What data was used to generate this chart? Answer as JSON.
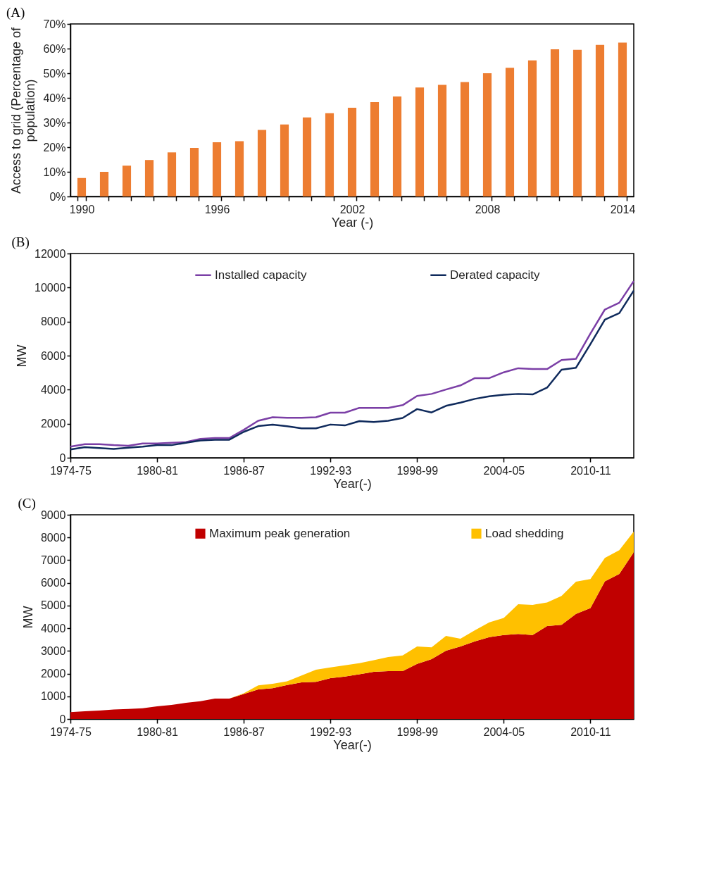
{
  "chart_data": [
    {
      "type": "bar",
      "title": "(A)",
      "xlabel": "Year (-)",
      "ylabel": "Access to grid (Percentage of population)",
      "categories": [
        "1990",
        null,
        null,
        null,
        null,
        null,
        "1996",
        null,
        null,
        null,
        null,
        null,
        "2002",
        null,
        null,
        null,
        null,
        null,
        "2008",
        null,
        null,
        null,
        null,
        null,
        "2014"
      ],
      "values": [
        7.5,
        10,
        12.5,
        14.8,
        17.9,
        19.7,
        22,
        22.4,
        27,
        29.2,
        32.1,
        33.8,
        36,
        38.3,
        40.6,
        44.2,
        45.3,
        46.4,
        50,
        52.2,
        55.2,
        59.7,
        59.5,
        61.5,
        62.4
      ],
      "color": "#ed7d31",
      "ylim": [
        0,
        70
      ],
      "yticks": [
        {
          "value": 0,
          "label": "0%"
        },
        {
          "value": 10,
          "label": "10%"
        },
        {
          "value": 20,
          "label": "20%"
        },
        {
          "value": 30,
          "label": "30%"
        },
        {
          "value": 40,
          "label": "40%"
        },
        {
          "value": 50,
          "label": "50%"
        },
        {
          "value": 60,
          "label": "60%"
        },
        {
          "value": 70,
          "label": "70%"
        }
      ],
      "grid": false
    },
    {
      "type": "line",
      "title": "(B)",
      "xlabel": "Year(-)",
      "ylabel": "MW",
      "categories": [
        "1974-75",
        null,
        null,
        null,
        null,
        null,
        "1980-81",
        null,
        null,
        null,
        null,
        null,
        "1986-87",
        null,
        null,
        null,
        null,
        null,
        "1992-93",
        null,
        null,
        null,
        null,
        null,
        "1998-99",
        null,
        null,
        null,
        null,
        null,
        "2004-05",
        null,
        null,
        null,
        null,
        null,
        "2010-11",
        null,
        null,
        null
      ],
      "series": [
        {
          "name": "Installed capacity",
          "color": "#7b3fa6",
          "values": [
            650,
            800,
            800,
            740,
            700,
            840,
            840,
            880,
            920,
            1110,
            1160,
            1160,
            1640,
            2170,
            2380,
            2350,
            2350,
            2380,
            2650,
            2650,
            2930,
            2930,
            2930,
            3090,
            3630,
            3750,
            4010,
            4250,
            4680,
            4680,
            5020,
            5260,
            5210,
            5210,
            5740,
            5810,
            7300,
            8710,
            9110,
            10380
          ]
        },
        {
          "name": "Derated capacity",
          "color": "#0f2a5c",
          "values": [
            490,
            620,
            570,
            520,
            590,
            650,
            740,
            740,
            880,
            1010,
            1060,
            1060,
            1520,
            1860,
            1940,
            1850,
            1730,
            1730,
            1950,
            1900,
            2150,
            2100,
            2170,
            2340,
            2860,
            2660,
            3050,
            3240,
            3460,
            3610,
            3700,
            3750,
            3720,
            4120,
            5170,
            5290,
            6680,
            8120,
            8500,
            9820
          ]
        }
      ],
      "ylim": [
        0,
        12000
      ],
      "yticks": [
        0,
        2000,
        4000,
        6000,
        8000,
        10000,
        12000
      ],
      "grid": false,
      "legend": "top"
    },
    {
      "type": "area",
      "title": "(C)",
      "xlabel": "Year(-)",
      "ylabel": "MW",
      "stacked": true,
      "categories": [
        "1974-75",
        null,
        null,
        null,
        null,
        null,
        "1980-81",
        null,
        null,
        null,
        null,
        null,
        "1986-87",
        null,
        null,
        null,
        null,
        null,
        "1992-93",
        null,
        null,
        null,
        null,
        null,
        "1998-99",
        null,
        null,
        null,
        null,
        null,
        "2004-05",
        null,
        null,
        null,
        null,
        null,
        "2010-11",
        null,
        null,
        null
      ],
      "series": [
        {
          "name": "Maximum peak generation",
          "color": "#c00000",
          "values": [
            300,
            340,
            370,
            420,
            440,
            470,
            560,
            620,
            710,
            780,
            900,
            900,
            1100,
            1300,
            1360,
            1500,
            1610,
            1640,
            1800,
            1870,
            1970,
            2080,
            2110,
            2110,
            2430,
            2640,
            3010,
            3200,
            3420,
            3610,
            3700,
            3750,
            3700,
            4100,
            4150,
            4630,
            4890,
            6070,
            6390,
            7350
          ]
        },
        {
          "name": "Load shedding",
          "color": "#ffc000",
          "values": [
            0,
            0,
            0,
            0,
            0,
            0,
            0,
            0,
            0,
            0,
            0,
            0,
            30,
            180,
            190,
            160,
            310,
            530,
            470,
            500,
            490,
            510,
            620,
            690,
            770,
            520,
            650,
            340,
            490,
            650,
            750,
            1310,
            1330,
            1040,
            1270,
            1420,
            1280,
            1030,
            1050,
            910
          ]
        }
      ],
      "ylim": [
        0,
        9000
      ],
      "yticks": [
        0,
        1000,
        2000,
        3000,
        4000,
        5000,
        6000,
        7000,
        8000,
        9000
      ],
      "grid": false,
      "legend": "top"
    }
  ]
}
